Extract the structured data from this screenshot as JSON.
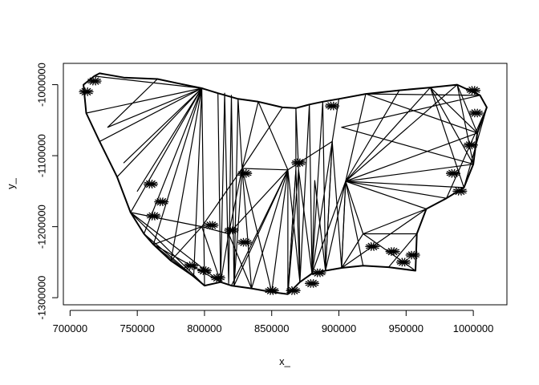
{
  "chart_data": {
    "type": "line",
    "title": "",
    "xlabel": "x_",
    "ylabel": "y_",
    "xlim": [
      695000,
      1025000
    ],
    "ylim": [
      -1310000,
      -970000
    ],
    "x_ticks": [
      700000,
      750000,
      800000,
      850000,
      900000,
      950000,
      1000000
    ],
    "x_tick_labels": [
      "700000",
      "750000",
      "800000",
      "850000",
      "900000",
      "950000",
      "1000000"
    ],
    "y_ticks": [
      -1000000,
      -1100000,
      -1200000,
      -1300000
    ],
    "y_tick_labels": [
      "-1000000",
      "-1100000",
      "-1200000",
      "-1300000"
    ],
    "line_color": "#000000",
    "series": [
      {
        "values": [
          [
            718000,
            -988000
          ],
          [
            722000,
            -984000
          ],
          [
            740000,
            -990000
          ],
          [
            765000,
            -992000
          ],
          [
            780000,
            -998000
          ],
          [
            798000,
            -1005000
          ],
          [
            810000,
            -1012000
          ],
          [
            825000,
            -1020000
          ],
          [
            840000,
            -1024000
          ],
          [
            858000,
            -1032000
          ],
          [
            868000,
            -1033000
          ],
          [
            878000,
            -1028000
          ],
          [
            888000,
            -1024000
          ],
          [
            900000,
            -1020000
          ],
          [
            920000,
            -1013000
          ],
          [
            945000,
            -1008000
          ],
          [
            968000,
            -1004000
          ],
          [
            988000,
            -1000000
          ],
          [
            1005000,
            -1015000
          ],
          [
            1010000,
            -1032000
          ],
          [
            1003000,
            -1068000
          ],
          [
            1000000,
            -1112000
          ],
          [
            993000,
            -1145000
          ],
          [
            980000,
            -1160000
          ],
          [
            965000,
            -1175000
          ],
          [
            958000,
            -1210000
          ],
          [
            957000,
            -1262000
          ],
          [
            937000,
            -1257000
          ],
          [
            918000,
            -1255000
          ],
          [
            902000,
            -1258000
          ],
          [
            890000,
            -1262000
          ],
          [
            880000,
            -1266000
          ],
          [
            871000,
            -1278000
          ],
          [
            862000,
            -1295000
          ],
          [
            850000,
            -1292000
          ],
          [
            835000,
            -1287000
          ],
          [
            820000,
            -1283000
          ],
          [
            812000,
            -1278000
          ],
          [
            800000,
            -1283000
          ],
          [
            792000,
            -1270000
          ],
          [
            775000,
            -1248000
          ],
          [
            762000,
            -1225000
          ],
          [
            755000,
            -1210000
          ],
          [
            745000,
            -1180000
          ],
          [
            735000,
            -1130000
          ],
          [
            722000,
            -1080000
          ],
          [
            712000,
            -1040000
          ],
          [
            710000,
            -1000000
          ],
          [
            718000,
            -988000
          ]
        ]
      },
      {
        "values": [
          [
            718000,
            -988000
          ],
          [
            798000,
            -1005000
          ],
          [
            722000,
            -1080000
          ],
          [
            798000,
            -1005000
          ],
          [
            735000,
            -1130000
          ],
          [
            798000,
            -1005000
          ],
          [
            745000,
            -1180000
          ],
          [
            798000,
            -1005000
          ],
          [
            755000,
            -1210000
          ],
          [
            798000,
            -1005000
          ],
          [
            712000,
            -1040000
          ],
          [
            798000,
            -1005000
          ],
          [
            765000,
            -992000
          ],
          [
            728000,
            -1060000
          ],
          [
            798000,
            -1005000
          ],
          [
            740000,
            -1110000
          ],
          [
            798000,
            -1005000
          ],
          [
            750000,
            -1150000
          ],
          [
            798000,
            -1005000
          ],
          [
            762000,
            -1225000
          ],
          [
            800000,
            -1283000
          ],
          [
            798000,
            -1005000
          ],
          [
            792000,
            -1270000
          ],
          [
            798000,
            -1005000
          ],
          [
            775000,
            -1248000
          ],
          [
            798000,
            -1200000
          ],
          [
            745000,
            -1180000
          ]
        ]
      },
      {
        "values": [
          [
            810000,
            -1012000
          ],
          [
            812000,
            -1278000
          ],
          [
            815000,
            -1012000
          ],
          [
            818000,
            -1280000
          ],
          [
            820000,
            -1015000
          ],
          [
            822000,
            -1283000
          ],
          [
            825000,
            -1020000
          ],
          [
            828000,
            -1118000
          ],
          [
            858000,
            -1032000
          ],
          [
            828000,
            -1118000
          ],
          [
            840000,
            -1024000
          ],
          [
            862000,
            -1120000
          ],
          [
            828000,
            -1118000
          ],
          [
            862000,
            -1120000
          ],
          [
            820000,
            -1283000
          ],
          [
            862000,
            -1120000
          ],
          [
            835000,
            -1287000
          ],
          [
            862000,
            -1120000
          ],
          [
            850000,
            -1292000
          ],
          [
            862000,
            -1120000
          ],
          [
            862000,
            -1295000
          ],
          [
            868000,
            -1120000
          ],
          [
            868000,
            -1033000
          ],
          [
            870000,
            -1120000
          ],
          [
            871000,
            -1278000
          ],
          [
            878000,
            -1028000
          ],
          [
            880000,
            -1266000
          ],
          [
            888000,
            -1024000
          ],
          [
            890000,
            -1262000
          ],
          [
            895000,
            -1080000
          ],
          [
            900000,
            -1020000
          ],
          [
            895000,
            -1080000
          ],
          [
            862000,
            -1120000
          ],
          [
            895000,
            -1080000
          ],
          [
            880000,
            -1266000
          ],
          [
            905000,
            -1136000
          ],
          [
            890000,
            -1262000
          ],
          [
            905000,
            -1136000
          ],
          [
            902000,
            -1258000
          ]
        ]
      },
      {
        "values": [
          [
            900000,
            -1020000
          ],
          [
            920000,
            -1013000
          ],
          [
            905000,
            -1136000
          ],
          [
            945000,
            -1008000
          ],
          [
            905000,
            -1136000
          ],
          [
            988000,
            -1000000
          ],
          [
            905000,
            -1136000
          ],
          [
            1000000,
            -1112000
          ],
          [
            905000,
            -1136000
          ],
          [
            993000,
            -1145000
          ],
          [
            905000,
            -1136000
          ],
          [
            980000,
            -1160000
          ],
          [
            905000,
            -1136000
          ],
          [
            965000,
            -1175000
          ],
          [
            902000,
            -1258000
          ],
          [
            965000,
            -1175000
          ],
          [
            918000,
            -1210000
          ],
          [
            958000,
            -1210000
          ],
          [
            937000,
            -1257000
          ],
          [
            958000,
            -1210000
          ],
          [
            957000,
            -1262000
          ],
          [
            918000,
            -1210000
          ],
          [
            902000,
            -1258000
          ],
          [
            918000,
            -1210000
          ],
          [
            905000,
            -1136000
          ],
          [
            968000,
            -1004000
          ],
          [
            1000000,
            -1112000
          ],
          [
            988000,
            -1000000
          ],
          [
            1003000,
            -1068000
          ],
          [
            920000,
            -1013000
          ],
          [
            1005000,
            -1015000
          ],
          [
            902000,
            -1060000
          ],
          [
            1000000,
            -1112000
          ],
          [
            905000,
            -1136000
          ],
          [
            1003000,
            -1068000
          ],
          [
            968000,
            -1004000
          ],
          [
            993000,
            -1145000
          ],
          [
            1010000,
            -1032000
          ],
          [
            980000,
            -1160000
          ]
        ]
      },
      {
        "values": [
          [
            755000,
            -1210000
          ],
          [
            800000,
            -1283000
          ],
          [
            745000,
            -1180000
          ],
          [
            812000,
            -1278000
          ],
          [
            762000,
            -1225000
          ],
          [
            798000,
            -1200000
          ],
          [
            812000,
            -1278000
          ],
          [
            818000,
            -1210000
          ],
          [
            798000,
            -1200000
          ],
          [
            828000,
            -1118000
          ],
          [
            818000,
            -1210000
          ],
          [
            862000,
            -1120000
          ],
          [
            818000,
            -1210000
          ],
          [
            835000,
            -1287000
          ],
          [
            828000,
            -1118000
          ],
          [
            850000,
            -1292000
          ],
          [
            828000,
            -1118000
          ],
          [
            822000,
            -1283000
          ],
          [
            862000,
            -1120000
          ],
          [
            871000,
            -1278000
          ],
          [
            868000,
            -1120000
          ],
          [
            862000,
            -1295000
          ],
          [
            870000,
            -1120000
          ],
          [
            880000,
            -1266000
          ],
          [
            882000,
            -1135000
          ],
          [
            890000,
            -1262000
          ],
          [
            895000,
            -1080000
          ],
          [
            902000,
            -1258000
          ],
          [
            905000,
            -1136000
          ],
          [
            918000,
            -1255000
          ]
        ]
      }
    ],
    "clusters": [
      [
        760000,
        -1140000
      ],
      [
        768000,
        -1165000
      ],
      [
        762000,
        -1185000
      ],
      [
        805000,
        -1198000
      ],
      [
        820000,
        -1205000
      ],
      [
        830000,
        -1222000
      ],
      [
        790000,
        -1255000
      ],
      [
        800000,
        -1262000
      ],
      [
        810000,
        -1272000
      ],
      [
        830000,
        -1125000
      ],
      [
        850000,
        -1290000
      ],
      [
        866000,
        -1290000
      ],
      [
        870000,
        -1110000
      ],
      [
        885000,
        -1265000
      ],
      [
        880000,
        -1280000
      ],
      [
        895000,
        -1030000
      ],
      [
        925000,
        -1228000
      ],
      [
        940000,
        -1235000
      ],
      [
        955000,
        -1240000
      ],
      [
        948000,
        -1250000
      ],
      [
        985000,
        -1125000
      ],
      [
        990000,
        -1150000
      ],
      [
        998000,
        -1085000
      ],
      [
        1002000,
        -1040000
      ],
      [
        1000000,
        -1008000
      ],
      [
        718000,
        -995000
      ],
      [
        712000,
        -1010000
      ]
    ]
  }
}
